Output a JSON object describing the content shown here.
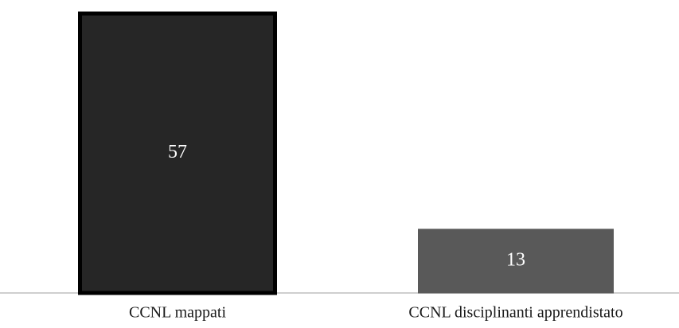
{
  "chart_data": {
    "type": "bar",
    "categories": [
      "CCNL mappati",
      "CCNL disciplinanti apprendistato"
    ],
    "values": [
      57,
      13
    ],
    "data_labels": [
      "57",
      "13"
    ],
    "colors": [
      "#262626",
      "#595959"
    ],
    "outline_colors": [
      "#000000",
      "#595959"
    ],
    "label_color": "#ffffff",
    "ylim": [
      0,
      57
    ],
    "grid": false,
    "legend": "none",
    "title": "",
    "xlabel": "",
    "ylabel": ""
  }
}
